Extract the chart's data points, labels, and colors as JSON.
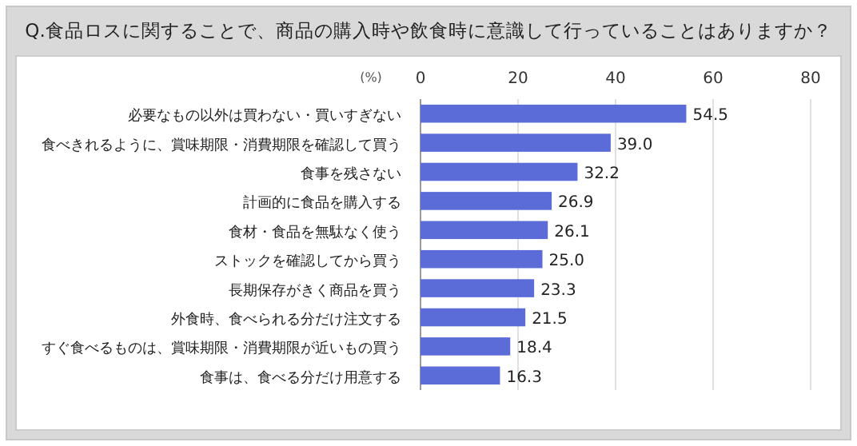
{
  "chart_data": {
    "type": "bar",
    "orientation": "horizontal",
    "title": "Q.食品ロスに関することで、商品の購入時や飲食時に意識して行っていることはありますか？",
    "xlabel": "(%)",
    "categories": [
      "必要なもの以外は買わない・買いすぎない",
      "食べきれるように、賞味期限・消費期限を確認して買う",
      "食事を残さない",
      "計画的に食品を購入する",
      "食材・食品を無駄なく使う",
      "ストックを確認してから買う",
      "長期保存がきく商品を買う",
      "外食時、食べられる分だけ注文する",
      "すぐ食べるものは、賞味期限・消費期限が近いもの買う",
      "食事は、食べる分だけ用意する"
    ],
    "values": [
      54.5,
      39.0,
      32.2,
      26.9,
      26.1,
      25.0,
      23.3,
      21.5,
      18.4,
      16.3
    ],
    "value_labels": [
      "54.5",
      "39.0",
      "32.2",
      "26.9",
      "26.1",
      "25.0",
      "23.3",
      "21.5",
      "18.4",
      "16.3"
    ],
    "color": "#5b6bd8",
    "xlim": [
      0,
      80
    ],
    "xticks": [
      0,
      20,
      40,
      60,
      80
    ],
    "grid": "x"
  }
}
